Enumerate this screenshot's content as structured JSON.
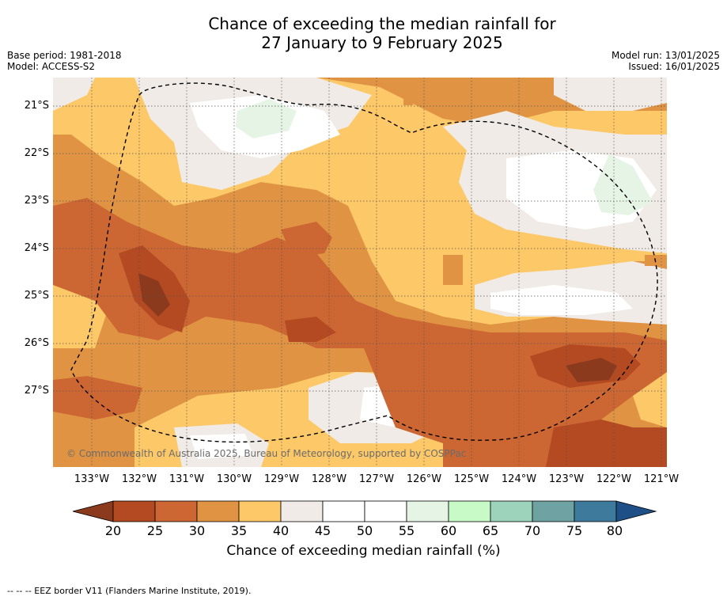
{
  "title": {
    "line1": "Chance of exceeding the median rainfall for",
    "line2": "27 January to 9 February 2025"
  },
  "meta_left": {
    "base_period": "Base period: 1981-2018",
    "model": "Model: ACCESS-S2"
  },
  "meta_right": {
    "model_run": "Model run: 13/01/2025",
    "issued": "Issued: 16/01/2025"
  },
  "copyright": "© Commonwealth of Australia 2025, Bureau of Meteorology, supported by COSPPac",
  "x_ticks": [
    "133°W",
    "132°W",
    "131°W",
    "130°W",
    "129°W",
    "128°W",
    "127°W",
    "126°W",
    "125°W",
    "124°W",
    "123°W",
    "122°W",
    "121°W"
  ],
  "y_ticks": [
    "21°S",
    "22°S",
    "23°S",
    "24°S",
    "25°S",
    "26°S",
    "27°S"
  ],
  "colorbar": {
    "ticks": [
      "20",
      "25",
      "30",
      "35",
      "40",
      "45",
      "50",
      "55",
      "60",
      "65",
      "70",
      "75",
      "80"
    ],
    "label": "Chance of exceeding median rainfall (%)",
    "colors": [
      "#8b3a1e",
      "#b34a22",
      "#cc6632",
      "#e09443",
      "#fdc868",
      "#f0ebe6",
      "#ffffff",
      "#ffffff",
      "#e6f4e6",
      "#c8fac8",
      "#9dd3ba",
      "#6fa3a3",
      "#3e7a9c",
      "#1f4f87"
    ]
  },
  "footnote": "--  --  -- EEZ border V11 (Flanders Marine Institute, 2019)."
}
